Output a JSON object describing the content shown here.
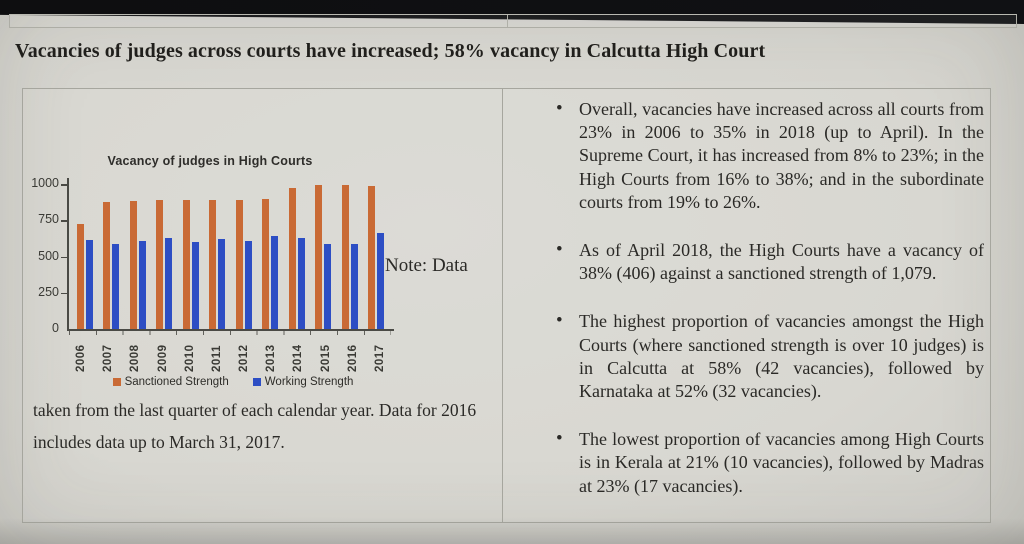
{
  "page": {
    "heading": "Vacancies of judges across courts have increased; 58% vacancy in Calcutta High Court"
  },
  "figure": {
    "note_side": "Note: Data",
    "note_continuation": "taken from the last quarter of each calendar year. Data for 2016 includes data up to March 31, 2017."
  },
  "bullets": [
    "Overall, vacancies have increased across all courts from 23% in 2006 to 35% in 2018 (up to April). In the Supreme Court, it has increased from 8% to 23%; in the High Courts from 16% to 38%; and in the subordinate courts from 19% to 26%.",
    "As of April 2018, the High Courts have a vacancy of 38% (406) against a sanctioned strength of 1,079.",
    "The highest proportion of vacancies amongst the High Courts (where sanctioned strength is over 10 judges) is in Calcutta at 58% (42 vacancies), followed by Karnataka at 52% (32 vacancies).",
    "The lowest proportion of vacancies among High Courts is in Kerala at 21% (10 vacancies), followed by Madras at 23% (17 vacancies)."
  ],
  "chart_data": {
    "type": "bar",
    "title": "Vacancy of judges in High Courts",
    "categories": [
      "2006",
      "2007",
      "2008",
      "2009",
      "2010",
      "2011",
      "2012",
      "2013",
      "2014",
      "2015",
      "2016",
      "2017"
    ],
    "series": [
      {
        "name": "Sanctioned Strength",
        "color": "#c96a35",
        "values": [
          725,
          875,
          885,
          890,
          890,
          890,
          890,
          900,
          975,
          995,
          990,
          985
        ]
      },
      {
        "name": "Working Strength",
        "color": "#2d4ec4",
        "values": [
          615,
          585,
          605,
          630,
          600,
          620,
          610,
          640,
          625,
          590,
          590,
          665
        ]
      }
    ],
    "xlabel": "",
    "ylabel": "",
    "ylim": [
      0,
      1000
    ],
    "yticks": [
      0,
      250,
      500,
      750,
      1000
    ],
    "grid": false,
    "legend_position": "bottom"
  },
  "colors": {
    "sanctioned": "#c96a35",
    "working": "#2d4ec4",
    "table_border": "#a6a69e",
    "ink": "#2a2926"
  }
}
